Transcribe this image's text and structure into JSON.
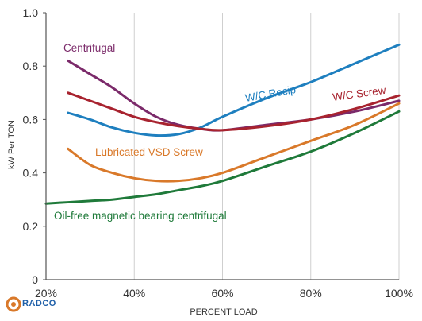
{
  "chart_data": {
    "type": "line",
    "xlabel": "PERCENT LOAD",
    "ylabel": "kW Per TON",
    "xlim": [
      20,
      100
    ],
    "ylim": [
      0,
      1.0
    ],
    "x_ticks": [
      {
        "value": 20,
        "label": "20%"
      },
      {
        "value": 40,
        "label": "40%"
      },
      {
        "value": 60,
        "label": "60%"
      },
      {
        "value": 80,
        "label": "80%"
      },
      {
        "value": 100,
        "label": "100%"
      }
    ],
    "y_ticks": [
      {
        "value": 0,
        "label": "0"
      },
      {
        "value": 0.2,
        "label": "0.2"
      },
      {
        "value": 0.4,
        "label": "0.4"
      },
      {
        "value": 0.6,
        "label": "0.6"
      },
      {
        "value": 0.8,
        "label": "0.8"
      },
      {
        "value": 1.0,
        "label": "1.0"
      }
    ],
    "grid": "vertical",
    "series": [
      {
        "name": "Centrifugal",
        "color": "#7b2a6a",
        "x": [
          25,
          30,
          35,
          40,
          45,
          50,
          55,
          60,
          70,
          80,
          90,
          100
        ],
        "y": [
          0.82,
          0.77,
          0.72,
          0.66,
          0.61,
          0.58,
          0.565,
          0.56,
          0.58,
          0.6,
          0.63,
          0.67
        ]
      },
      {
        "name": "W/C Recip",
        "color": "#1e7fbf",
        "x": [
          25,
          30,
          35,
          40,
          45,
          50,
          55,
          60,
          70,
          80,
          90,
          100
        ],
        "y": [
          0.625,
          0.6,
          0.57,
          0.55,
          0.54,
          0.545,
          0.57,
          0.61,
          0.68,
          0.74,
          0.81,
          0.88
        ]
      },
      {
        "name": "W/C Screw",
        "color": "#a8232f",
        "x": [
          25,
          30,
          35,
          40,
          45,
          50,
          55,
          60,
          70,
          80,
          90,
          100
        ],
        "y": [
          0.7,
          0.67,
          0.64,
          0.61,
          0.59,
          0.575,
          0.565,
          0.56,
          0.575,
          0.6,
          0.64,
          0.69
        ]
      },
      {
        "name": "Lubricated VSD Screw",
        "color": "#d9792a",
        "x": [
          25,
          30,
          35,
          40,
          45,
          50,
          55,
          60,
          70,
          80,
          90,
          100
        ],
        "y": [
          0.49,
          0.43,
          0.4,
          0.38,
          0.37,
          0.37,
          0.38,
          0.4,
          0.46,
          0.52,
          0.58,
          0.66
        ]
      },
      {
        "name": "Oil-free magnetic bearing centrifugal",
        "color": "#1f7a3a",
        "x": [
          20,
          25,
          30,
          35,
          40,
          45,
          50,
          55,
          60,
          70,
          80,
          90,
          100
        ],
        "y": [
          0.285,
          0.29,
          0.295,
          0.3,
          0.31,
          0.32,
          0.335,
          0.35,
          0.37,
          0.425,
          0.48,
          0.55,
          0.63
        ]
      }
    ]
  },
  "watermark": {
    "text": "RADCO"
  }
}
